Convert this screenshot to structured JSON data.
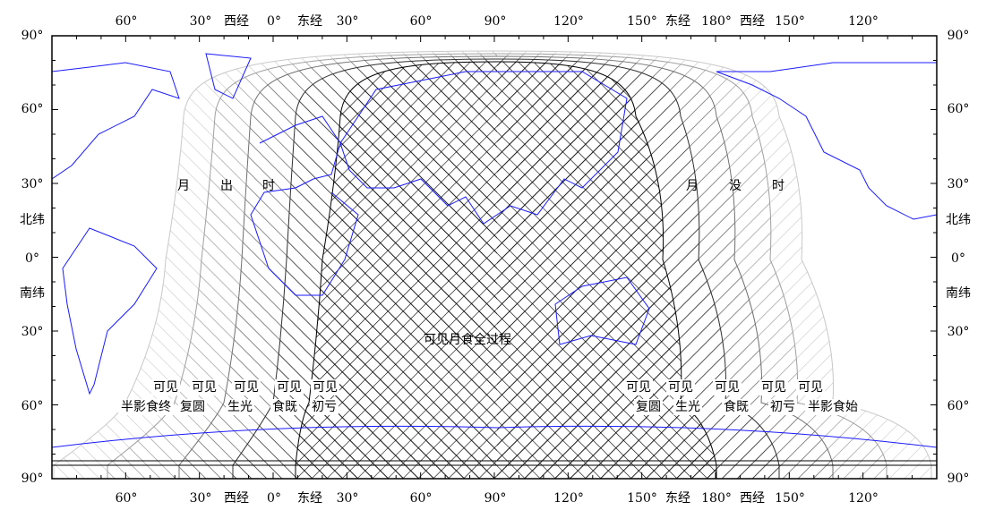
{
  "longitude_labels": [
    "60°",
    "30°",
    "西经",
    "0°",
    "东经",
    "30°",
    "60°",
    "90°",
    "120°",
    "150°",
    "东经",
    "180°",
    "西经",
    "150°",
    "120°"
  ],
  "latitude_labels": [
    "90°",
    "60°",
    "30°",
    "北纬",
    "0°",
    "南纬",
    "30°",
    "60°",
    "90°"
  ],
  "moonrise_label": [
    "月",
    "出",
    "时"
  ],
  "moonset_label": [
    "月",
    "没",
    "时"
  ],
  "full_visibility_label": "可见月食全过程",
  "west_labels": [
    {
      "top": "可见",
      "bottom": "半影食终"
    },
    {
      "top": "可见",
      "bottom": "复圆"
    },
    {
      "top": "可见",
      "bottom": "生光"
    },
    {
      "top": "可见",
      "bottom": "食既"
    },
    {
      "top": "可见",
      "bottom": "初亏"
    }
  ],
  "east_labels": [
    {
      "top": "可见",
      "bottom": "复圆"
    },
    {
      "top": "可见",
      "bottom": "生光"
    },
    {
      "top": "可见",
      "bottom": "食既"
    },
    {
      "top": "可见",
      "bottom": "初亏"
    },
    {
      "top": "可见",
      "bottom": "半影食始"
    }
  ]
}
